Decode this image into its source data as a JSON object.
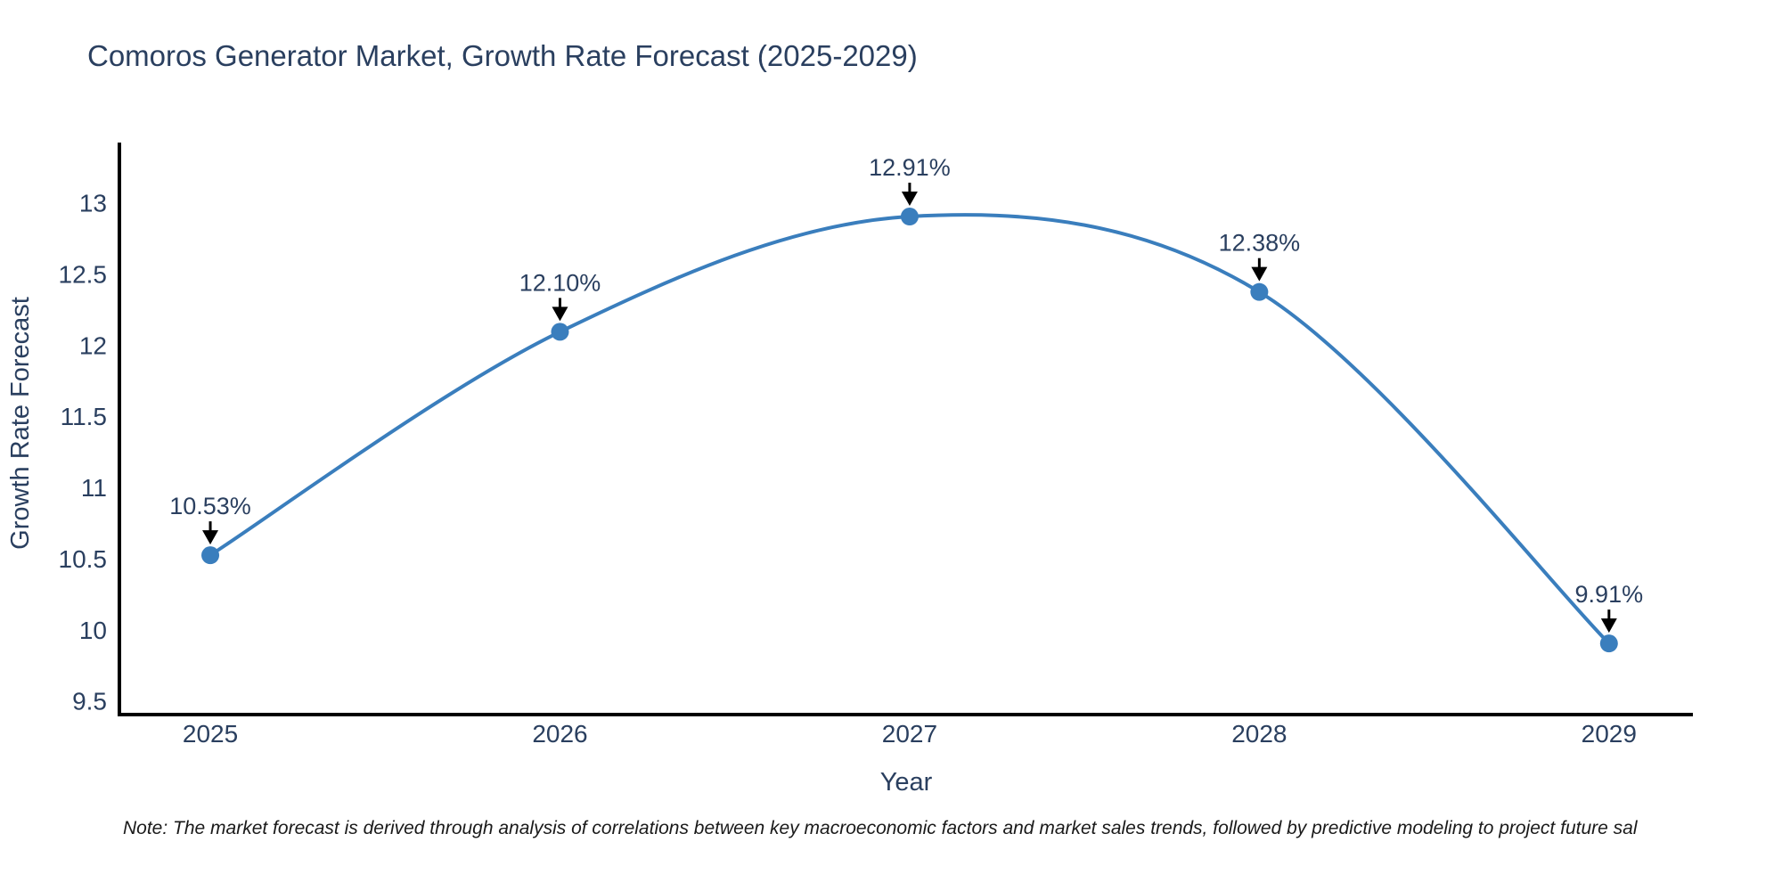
{
  "page": {
    "background": "#ffffff"
  },
  "note": {
    "text": "Note: The market forecast is derived through analysis of correlations between key macroeconomic factors and market sales trends, followed by predictive modeling to project future sal"
  },
  "chart_data": {
    "type": "line",
    "title": "Comoros Generator Market, Growth Rate Forecast (2025-2029)",
    "xlabel": "Year",
    "ylabel": "Growth Rate Forecast",
    "x": [
      2025,
      2026,
      2027,
      2028,
      2029
    ],
    "y": [
      10.53,
      12.1,
      12.91,
      12.38,
      9.91
    ],
    "point_labels": [
      "10.53%",
      "12.10%",
      "12.91%",
      "12.38%",
      "9.91%"
    ],
    "xticks": [
      "2025",
      "2026",
      "2027",
      "2028",
      "2029"
    ],
    "xtick_values": [
      2025,
      2026,
      2027,
      2028,
      2029
    ],
    "yticks": [
      "9.5",
      "10",
      "10.5",
      "11",
      "11.5",
      "12",
      "12.5",
      "13"
    ],
    "ytick_values": [
      9.5,
      10,
      10.5,
      11,
      11.5,
      12,
      12.5,
      13
    ],
    "xlim": [
      2024.74,
      2029.24
    ],
    "ylim": [
      9.41,
      13.43
    ],
    "grid": false,
    "legend": false,
    "line_shape": "spline",
    "annotation_arrows": "down-to-point",
    "colors": {
      "line": "#3a7ebd",
      "marker": "#3a7ebd",
      "axis": "#000000",
      "text": "#2a3f5f",
      "annotation_text": "#2a3f5f",
      "arrow": "#000000",
      "title": "#2a3f5f"
    }
  }
}
